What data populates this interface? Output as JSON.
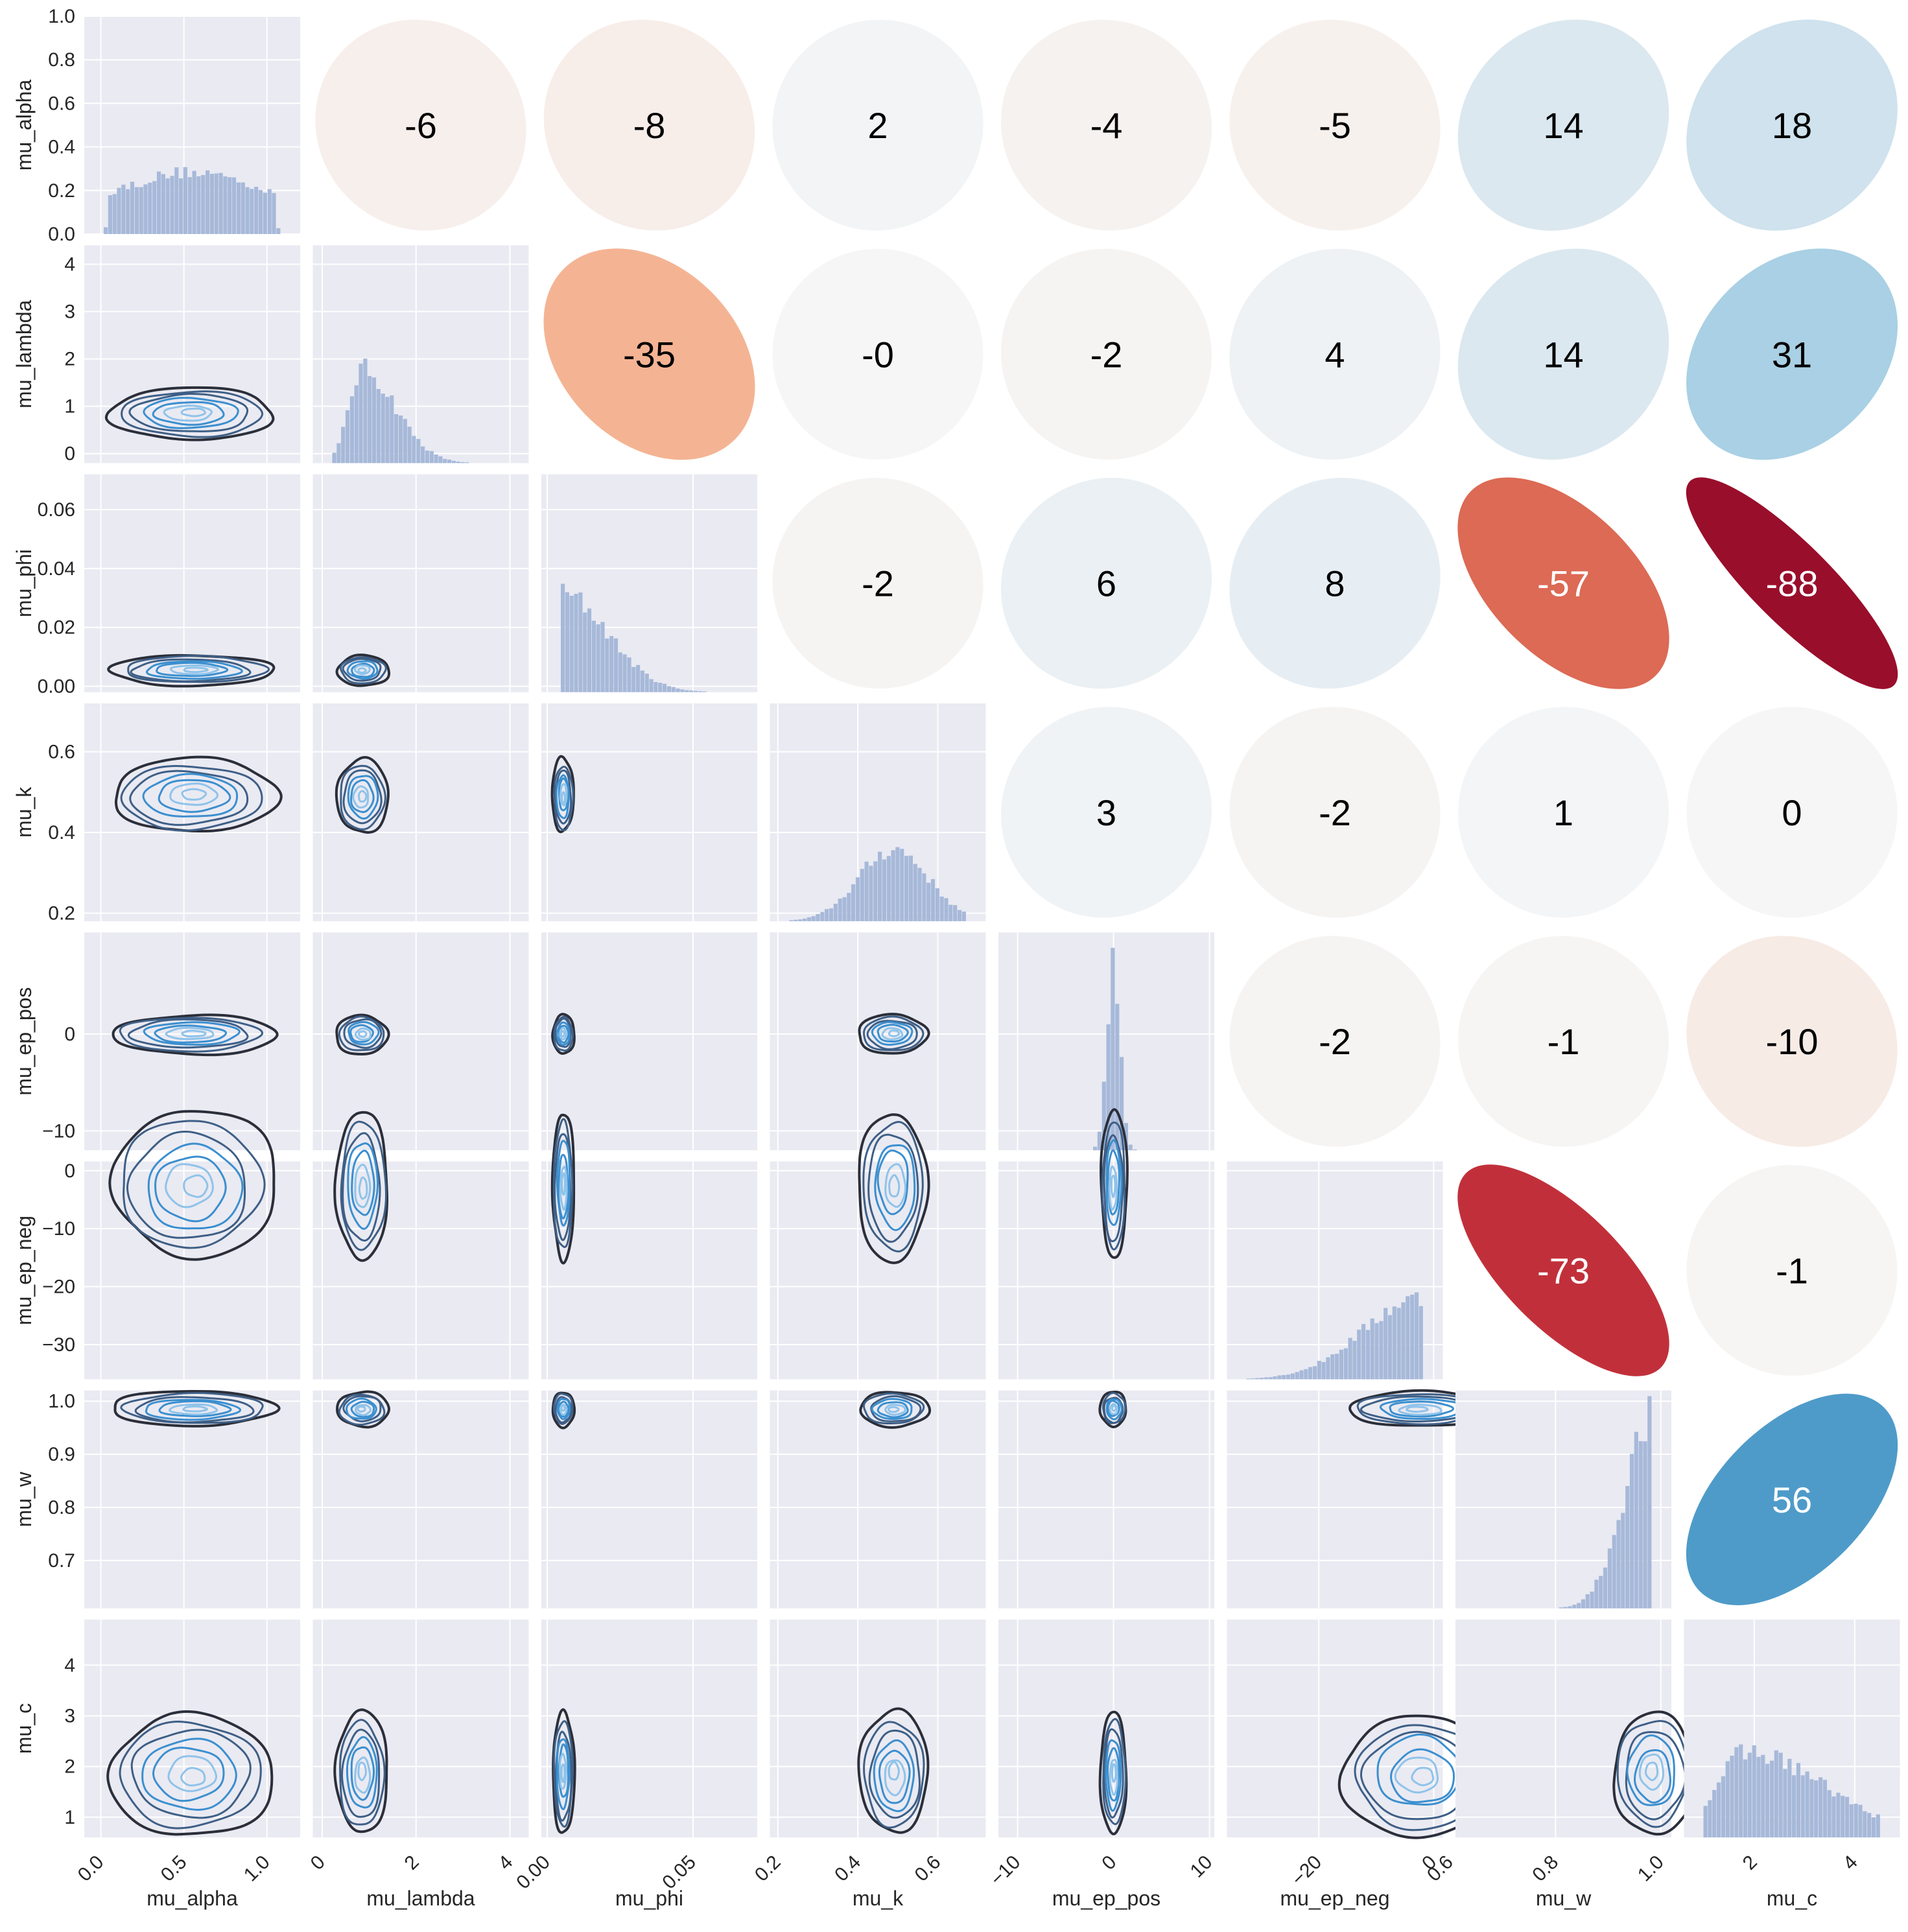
{
  "chart_data": {
    "type": "pairplot",
    "variables": [
      "mu_alpha",
      "mu_lambda",
      "mu_phi",
      "mu_k",
      "mu_ep_pos",
      "mu_ep_neg",
      "mu_w",
      "mu_c"
    ],
    "ranges": [
      [
        -0.1,
        1.2
      ],
      [
        -0.2,
        4.4
      ],
      [
        -0.002,
        0.072
      ],
      [
        0.18,
        0.72
      ],
      [
        -12,
        10.5
      ],
      [
        -36,
        1.6
      ],
      [
        0.61,
        1.02
      ],
      [
        0.6,
        4.9
      ]
    ],
    "y_ticks": [
      [
        0.0,
        0.2,
        0.4,
        0.6,
        0.8,
        1.0
      ],
      [
        0,
        1,
        2,
        3,
        4
      ],
      [
        0.0,
        0.02,
        0.04,
        0.06
      ],
      [
        0.2,
        0.4,
        0.6
      ],
      [
        -10,
        0
      ],
      [
        -30,
        -20,
        -10,
        0
      ],
      [
        0.7,
        0.8,
        0.9,
        1.0
      ],
      [
        1,
        2,
        3,
        4
      ]
    ],
    "y_tick_labels": [
      [
        "0.0",
        "0.2",
        "0.4",
        "0.6",
        "0.8",
        "1.0"
      ],
      [
        "0",
        "1",
        "2",
        "3",
        "4"
      ],
      [
        "0.00",
        "0.02",
        "0.04",
        "0.06"
      ],
      [
        "0.2",
        "0.4",
        "0.6"
      ],
      [
        "−10",
        "0"
      ],
      [
        "−30",
        "−20",
        "−10",
        "0"
      ],
      [
        "0.7",
        "0.8",
        "0.9",
        "1.0"
      ],
      [
        "1",
        "2",
        "3",
        "4"
      ]
    ],
    "x_ticks": [
      [
        0.0,
        0.5,
        1.0
      ],
      [
        0,
        2,
        4
      ],
      [
        0.0,
        0.05
      ],
      [
        0.2,
        0.4,
        0.6
      ],
      [
        -10,
        0,
        10
      ],
      [
        -20,
        0
      ],
      [
        0.6,
        0.8,
        1.0
      ],
      [
        2,
        4
      ]
    ],
    "x_tick_labels": [
      [
        "0.0",
        "0.5",
        "1.0"
      ],
      [
        "0",
        "2",
        "4"
      ],
      [
        "0.00",
        "0.05"
      ],
      [
        "0.2",
        "0.4",
        "0.6"
      ],
      [
        "−10",
        "0",
        "10"
      ],
      [
        "−20",
        "0"
      ],
      [
        "0.6",
        "0.8",
        "1.0"
      ],
      [
        "2",
        "4"
      ]
    ],
    "diag_ylim_alpha": [
      0.0,
      1.0
    ],
    "histogram_centers": [
      0.55,
      0.85,
      0.0055,
      0.49,
      0.0,
      -2.5,
      0.985,
      1.85
    ],
    "correlations": [
      {
        "row": 0,
        "col": 1,
        "value": -6
      },
      {
        "row": 0,
        "col": 2,
        "value": -8
      },
      {
        "row": 0,
        "col": 3,
        "value": 2
      },
      {
        "row": 0,
        "col": 4,
        "value": -4
      },
      {
        "row": 0,
        "col": 5,
        "value": -5
      },
      {
        "row": 0,
        "col": 6,
        "value": 14
      },
      {
        "row": 0,
        "col": 7,
        "value": 18
      },
      {
        "row": 1,
        "col": 2,
        "value": -35
      },
      {
        "row": 1,
        "col": 3,
        "value": 0,
        "label": "-0"
      },
      {
        "row": 1,
        "col": 4,
        "value": -2
      },
      {
        "row": 1,
        "col": 5,
        "value": 4
      },
      {
        "row": 1,
        "col": 6,
        "value": 14
      },
      {
        "row": 1,
        "col": 7,
        "value": 31
      },
      {
        "row": 2,
        "col": 3,
        "value": -2
      },
      {
        "row": 2,
        "col": 4,
        "value": 6
      },
      {
        "row": 2,
        "col": 5,
        "value": 8
      },
      {
        "row": 2,
        "col": 6,
        "value": -57
      },
      {
        "row": 2,
        "col": 7,
        "value": -88
      },
      {
        "row": 3,
        "col": 4,
        "value": 3
      },
      {
        "row": 3,
        "col": 5,
        "value": -2
      },
      {
        "row": 3,
        "col": 6,
        "value": 1
      },
      {
        "row": 3,
        "col": 7,
        "value": 0
      },
      {
        "row": 4,
        "col": 5,
        "value": -2
      },
      {
        "row": 4,
        "col": 6,
        "value": -1
      },
      {
        "row": 4,
        "col": 7,
        "value": -10
      },
      {
        "row": 5,
        "col": 6,
        "value": -73
      },
      {
        "row": 5,
        "col": 7,
        "value": -1
      },
      {
        "row": 6,
        "col": 7,
        "value": 56
      }
    ],
    "colors": {
      "panel_background": "#eaeaf2",
      "grid": "#ffffff",
      "histogram": "#a7b9d9",
      "kde_outer": "#2b2f3a",
      "kde_inner": "#3b8fcf",
      "kde_core": "#8fc3ea",
      "text_dark": "#000000",
      "text_light": "#ffffff"
    },
    "grid": true,
    "legend": "none"
  }
}
